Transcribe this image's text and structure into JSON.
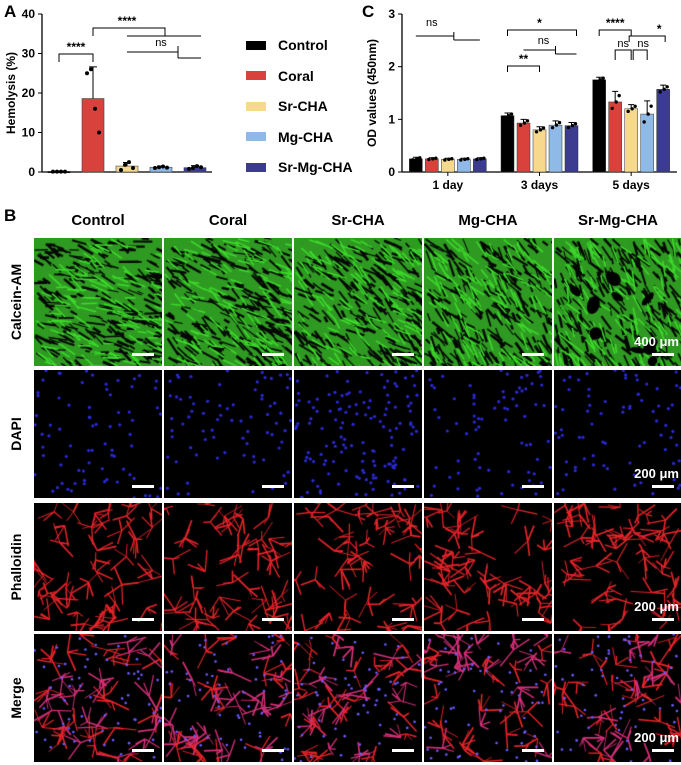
{
  "panels": {
    "a": "A",
    "b": "B",
    "c": "C"
  },
  "chart_data": [
    {
      "type": "bar",
      "panel": "A",
      "categories": [
        "Control",
        "Coral",
        "Sr-CHA",
        "Mg-CHA",
        "Sr-Mg-CHA"
      ],
      "values": [
        0.1,
        18.6,
        1.5,
        1.2,
        1.1
      ],
      "errors": [
        0.1,
        8.0,
        0.9,
        0.3,
        0.5
      ],
      "points": [
        [
          0.1,
          0.1,
          0.1,
          0.1
        ],
        [
          25,
          26,
          16,
          10
        ],
        [
          0.5,
          1.8,
          2.5,
          1.0
        ],
        [
          1.0,
          1.2,
          1.4,
          1.1
        ],
        [
          0.8,
          1.0,
          1.5,
          1.2
        ]
      ],
      "colors": [
        "#000000",
        "#d9413c",
        "#f6d98c",
        "#8fb9e6",
        "#3b3b8f"
      ],
      "ylabel": "Hemolysis (%)",
      "ylim": [
        0,
        40
      ],
      "yticks": [
        0,
        10,
        20,
        30,
        40
      ],
      "annotations": [
        "****",
        "****",
        "ns"
      ]
    },
    {
      "type": "bar",
      "panel": "C",
      "categories": [
        "1 day",
        "3 days",
        "5 days"
      ],
      "series": [
        {
          "name": "Control",
          "values": [
            0.25,
            1.07,
            1.75
          ],
          "errors": [
            0.03,
            0.05,
            0.05
          ],
          "color": "#000000"
        },
        {
          "name": "Coral",
          "values": [
            0.25,
            0.93,
            1.33
          ],
          "errors": [
            0.02,
            0.07,
            0.2
          ],
          "color": "#d9413c"
        },
        {
          "name": "Sr-CHA",
          "values": [
            0.24,
            0.8,
            1.2
          ],
          "errors": [
            0.02,
            0.06,
            0.08
          ],
          "color": "#f6d98c"
        },
        {
          "name": "Mg-CHA",
          "values": [
            0.24,
            0.89,
            1.1
          ],
          "errors": [
            0.02,
            0.08,
            0.25
          ],
          "color": "#8fb9e6"
        },
        {
          "name": "Sr-Mg-CHA",
          "values": [
            0.25,
            0.88,
            1.57
          ],
          "errors": [
            0.02,
            0.06,
            0.08
          ],
          "color": "#3b3b8f"
        }
      ],
      "ylabel": "OD values (450nm)",
      "ylim": [
        0,
        3
      ],
      "yticks": [
        0,
        1,
        2,
        3
      ],
      "annotations": [
        "ns",
        "*",
        "ns",
        "**",
        "****",
        "ns",
        "ns",
        "*"
      ]
    }
  ],
  "legend": [
    {
      "label": "Control",
      "color": "#000000"
    },
    {
      "label": "Coral",
      "color": "#d9413c"
    },
    {
      "label": "Sr-CHA",
      "color": "#f6d98c"
    },
    {
      "label": "Mg-CHA",
      "color": "#8fb9e6"
    },
    {
      "label": "Sr-Mg-CHA",
      "color": "#3b3b8f"
    }
  ],
  "micrographs": {
    "columns": [
      "Control",
      "Coral",
      "Sr-CHA",
      "Mg-CHA",
      "Sr-Mg-CHA"
    ],
    "rows": [
      {
        "label": "Calcein-AM",
        "scale": "400 μm",
        "stain": "#3ddc2c"
      },
      {
        "label": "DAPI",
        "scale": "200 μm",
        "stain": "#2a2ad8"
      },
      {
        "label": "Phalloidin",
        "scale": "200 μm",
        "stain": "#e8242a"
      },
      {
        "label": "Merge",
        "scale": "200 μm",
        "stain": "#d8307a"
      }
    ]
  }
}
